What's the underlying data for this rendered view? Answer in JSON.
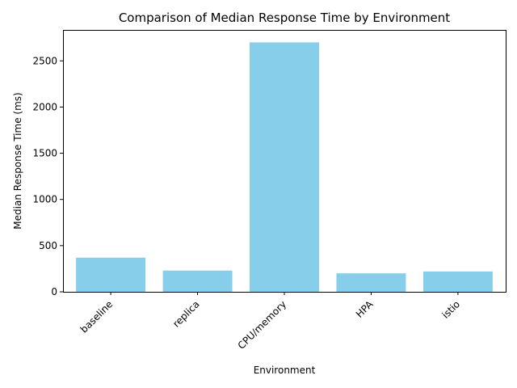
{
  "chart_data": {
    "type": "bar",
    "title": "Comparison of Median Response Time by Environment",
    "xlabel": "Environment",
    "ylabel": "Median Response Time (ms)",
    "categories": [
      "baseline",
      "replica",
      "CPU/memory",
      "HPA",
      "istio"
    ],
    "values": [
      370,
      230,
      2700,
      200,
      220
    ],
    "ylim": [
      0,
      2835
    ],
    "yticks": [
      0,
      500,
      1000,
      1500,
      2000,
      2500
    ],
    "bar_color": "#87ceeb",
    "grid": false,
    "legend": "none"
  }
}
